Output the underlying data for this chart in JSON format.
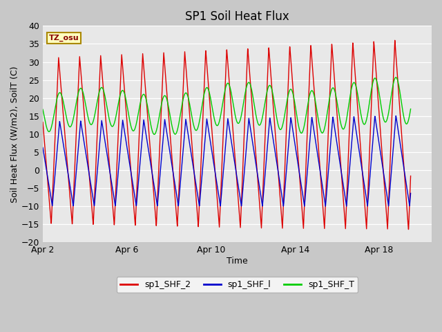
{
  "title": "SP1 Soil Heat Flux",
  "xlabel": "Time",
  "ylabel": "Soil Heat Flux (W/m2), SoilT (C)",
  "ylim": [
    -20,
    40
  ],
  "yticks": [
    -20,
    -15,
    -10,
    -5,
    0,
    5,
    10,
    15,
    20,
    25,
    30,
    35,
    40
  ],
  "xtick_labels": [
    "Apr 2",
    "Apr 6",
    "Apr 10",
    "Apr 14",
    "Apr 18"
  ],
  "xtick_positions": [
    1,
    5,
    9,
    13,
    17
  ],
  "xlim_start": 1,
  "xlim_end": 19.5,
  "n_days": 17.5,
  "points_per_day": 144,
  "color_red": "#dd0000",
  "color_blue": "#0000cc",
  "color_green": "#00cc00",
  "legend_labels": [
    "sp1_SHF_2",
    "sp1_SHF_l",
    "sp1_SHF_T"
  ],
  "tz_label": "TZ_osu",
  "fig_bg_color": "#c8c8c8",
  "plot_bg_color": "#e8e8e8",
  "line_width": 1.0,
  "title_fontsize": 12,
  "axis_label_fontsize": 9,
  "tick_fontsize": 9
}
